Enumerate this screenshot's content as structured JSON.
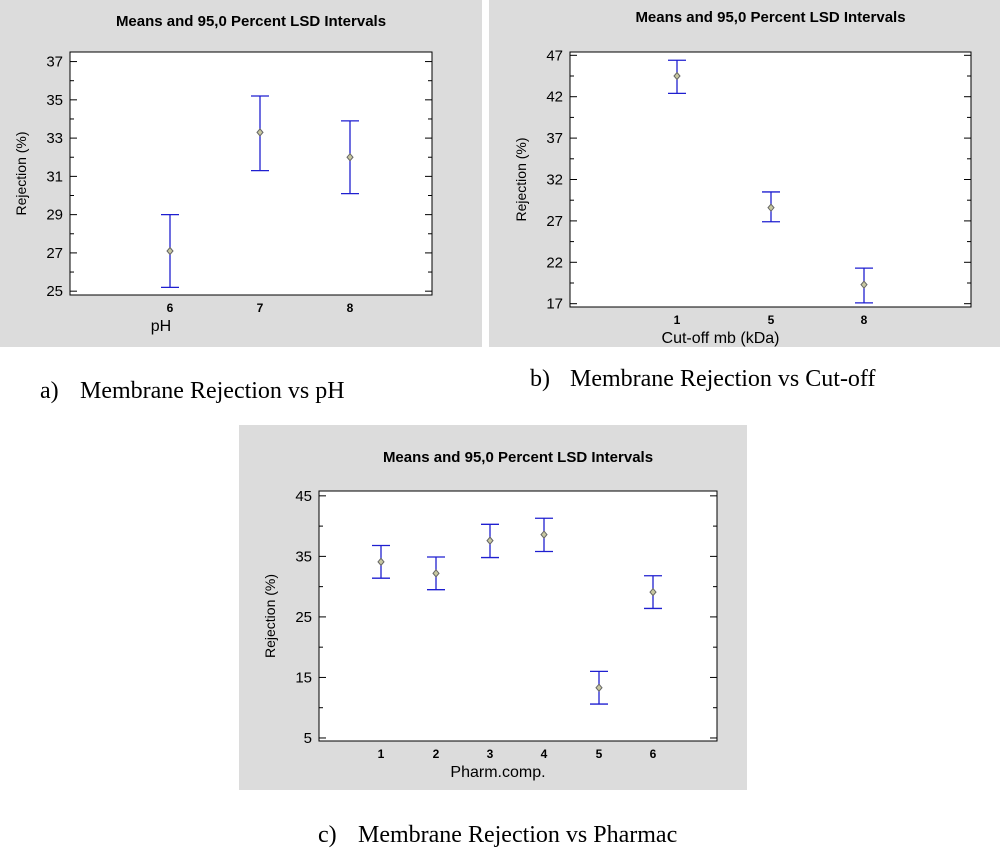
{
  "colors": {
    "panel_bg": "#dcdcdc",
    "plot_bg": "#ffffff",
    "interval": "#1f1fd0",
    "marker": "#666666",
    "text": "#000000"
  },
  "chart_data": [
    {
      "type": "scatter",
      "title": "Means and 95,0 Percent LSD Intervals",
      "xlabel": "pH",
      "ylabel": "Rejection (%)",
      "categories": [
        "6",
        "7",
        "8"
      ],
      "yticks": [
        25,
        27,
        29,
        31,
        33,
        35,
        37
      ],
      "ylim": [
        24.8,
        37.5
      ],
      "grid": false,
      "series": [
        {
          "means": [
            27.1,
            33.3,
            32.0
          ],
          "lower": [
            25.2,
            31.3,
            30.1
          ],
          "upper": [
            29.0,
            35.2,
            33.9
          ]
        }
      ],
      "caption_letter": "a)",
      "caption_text": "Membrane Rejection vs pH"
    },
    {
      "type": "scatter",
      "title": "Means and 95,0 Percent LSD Intervals",
      "xlabel": "Cut-off mb (kDa)",
      "ylabel": "Rejection (%)",
      "categories": [
        "1",
        "5",
        "8"
      ],
      "yticks": [
        17,
        22,
        27,
        32,
        37,
        42,
        47
      ],
      "ylim": [
        16.6,
        47.4
      ],
      "grid": false,
      "series": [
        {
          "means": [
            44.5,
            28.6,
            19.3
          ],
          "lower": [
            42.4,
            26.9,
            17.1
          ],
          "upper": [
            46.4,
            30.5,
            21.3
          ]
        }
      ],
      "caption_letter": "b)",
      "caption_text": "Membrane Rejection vs Cut-off"
    },
    {
      "type": "scatter",
      "title": "Means and 95,0 Percent LSD Intervals",
      "xlabel": "Pharm.comp.",
      "ylabel": "Rejection (%)",
      "categories": [
        "1",
        "2",
        "3",
        "4",
        "5",
        "6"
      ],
      "yticks": [
        5,
        15,
        25,
        35,
        45
      ],
      "ylim": [
        4.5,
        45.8
      ],
      "grid": false,
      "series": [
        {
          "means": [
            34.1,
            32.2,
            37.6,
            38.6,
            13.3,
            29.1
          ],
          "lower": [
            31.4,
            29.5,
            34.8,
            35.8,
            10.6,
            26.4
          ],
          "upper": [
            36.8,
            34.9,
            40.3,
            41.3,
            16.0,
            31.8
          ]
        }
      ],
      "caption_letter": "c)",
      "caption_text": "Membrane Rejection vs Pharmac"
    }
  ]
}
